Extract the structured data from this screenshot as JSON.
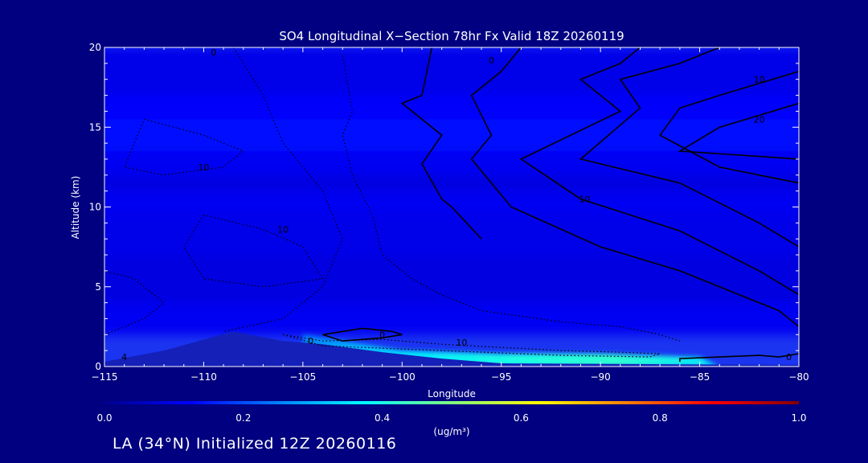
{
  "chart_data": {
    "type": "heatmap",
    "title": "SO4 Longitudinal X−Section 78hr  Fx Valid 18Z 20260119",
    "xlabel": "Longitude",
    "ylabel": "Altitude (km)",
    "xlim": [
      -115,
      -80
    ],
    "ylim": [
      0,
      20
    ],
    "x_ticks": [
      -115,
      -110,
      -105,
      -100,
      -95,
      -90,
      -85,
      -80
    ],
    "x_tick_labels": [
      "−115",
      "−110",
      "−105",
      "−100",
      "−95",
      "−90",
      "−85",
      "−80"
    ],
    "y_ticks": [
      0,
      5,
      10,
      15,
      20
    ],
    "y_tick_labels": [
      "0",
      "5",
      "10",
      "15",
      "20"
    ],
    "colorbar": {
      "label": "(ug/m³)",
      "range": [
        0,
        1
      ],
      "ticks": [
        0,
        0.2,
        0.4,
        0.6,
        0.8,
        1.0
      ],
      "tick_labels": [
        "0.0",
        "0.2",
        "0.4",
        "0.6",
        "0.8",
        "1.0"
      ],
      "colormap": [
        "#00008f",
        "#0000ff",
        "#0080ff",
        "#00ffff",
        "#80ff80",
        "#ffff00",
        "#ff8000",
        "#ff0000",
        "#800000"
      ]
    },
    "bands": [
      {
        "alt_range": [
          17,
          20
        ],
        "value": 0.1
      },
      {
        "alt_range": [
          15.5,
          17
        ],
        "value": 0.12
      },
      {
        "alt_range": [
          13.5,
          15.5
        ],
        "value": 0.14
      },
      {
        "alt_range": [
          12,
          13.5
        ],
        "value": 0.11
      },
      {
        "alt_range": [
          11,
          12
        ],
        "value": 0.09
      },
      {
        "alt_range": [
          9.5,
          11
        ],
        "value": 0.11
      },
      {
        "alt_range": [
          7,
          9.5
        ],
        "value": 0.1
      },
      {
        "alt_range": [
          4,
          7
        ],
        "value": 0.09
      },
      {
        "alt_range": [
          2,
          4
        ],
        "value": 0.11
      }
    ],
    "surface_plume": [
      {
        "lon": -105,
        "alt": 2.0,
        "value": 0.25
      },
      {
        "lon": -100,
        "alt": 1.0,
        "value": 0.35
      },
      {
        "lon": -95,
        "alt": 0.8,
        "value": 0.4
      },
      {
        "lon": -90,
        "alt": 0.8,
        "value": 0.42
      },
      {
        "lon": -85,
        "alt": 0.6,
        "value": 0.35
      }
    ],
    "terrain": [
      {
        "lon": -115,
        "alt": 0.3
      },
      {
        "lon": -112,
        "alt": 1.0
      },
      {
        "lon": -108.5,
        "alt": 2.2
      },
      {
        "lon": -106,
        "alt": 1.6
      },
      {
        "lon": -104,
        "alt": 1.4
      },
      {
        "lon": -101,
        "alt": 0.9
      },
      {
        "lon": -98,
        "alt": 0.5
      },
      {
        "lon": -95,
        "alt": 0.2
      },
      {
        "lon": -80,
        "alt": 0.1
      }
    ],
    "contour_labels": [
      {
        "text": "0",
        "lon": -109.5,
        "alt": 19.7
      },
      {
        "text": "0",
        "lon": -95.5,
        "alt": 19.2
      },
      {
        "text": "10",
        "lon": -82,
        "alt": 18.0
      },
      {
        "text": "20",
        "lon": -82,
        "alt": 15.5
      },
      {
        "text": "10",
        "lon": -110,
        "alt": 12.5
      },
      {
        "text": "10",
        "lon": -90.8,
        "alt": 10.5
      },
      {
        "text": "10",
        "lon": -106,
        "alt": 8.6
      },
      {
        "text": "0",
        "lon": -101,
        "alt": 2.0
      },
      {
        "text": "0",
        "lon": -104.6,
        "alt": 1.6
      },
      {
        "text": "10",
        "lon": -97,
        "alt": 1.5
      },
      {
        "text": "0",
        "lon": -80.5,
        "alt": 0.6
      },
      {
        "text": "4",
        "lon": -114,
        "alt": 0.6
      }
    ],
    "solid_contours": [
      [
        [
          -98.5,
          20
        ],
        [
          -99,
          17
        ],
        [
          -100,
          16.5
        ],
        [
          -98,
          14.5
        ],
        [
          -99,
          12.7
        ],
        [
          -98,
          10.5
        ],
        [
          -97.5,
          10
        ],
        [
          -96,
          8
        ]
      ],
      [
        [
          -94,
          20
        ],
        [
          -95,
          18.5
        ],
        [
          -96.5,
          17
        ],
        [
          -95.5,
          14.5
        ],
        [
          -96.5,
          13
        ],
        [
          -94.5,
          10
        ],
        [
          -90,
          7.5
        ],
        [
          -86,
          6
        ],
        [
          -83,
          4.5
        ],
        [
          -81,
          3.5
        ],
        [
          -80,
          2.5
        ]
      ],
      [
        [
          -88,
          20
        ],
        [
          -89,
          19
        ],
        [
          -91,
          18
        ],
        [
          -89,
          16
        ],
        [
          -94,
          13
        ],
        [
          -91,
          10.5
        ],
        [
          -86,
          8.5
        ],
        [
          -82,
          6
        ],
        [
          -80,
          4.5
        ]
      ],
      [
        [
          -84,
          20
        ],
        [
          -86,
          19
        ],
        [
          -89,
          18
        ],
        [
          -88,
          16.2
        ],
        [
          -91,
          13
        ],
        [
          -86,
          11.5
        ],
        [
          -82,
          9
        ],
        [
          -80,
          7.5
        ]
      ],
      [
        [
          -80,
          18.5
        ],
        [
          -84,
          17
        ],
        [
          -86,
          16.2
        ],
        [
          -87,
          14.5
        ],
        [
          -84,
          12.5
        ],
        [
          -80,
          11.5
        ]
      ],
      [
        [
          -80,
          16.5
        ],
        [
          -84,
          15
        ],
        [
          -86,
          13.5
        ],
        [
          -80,
          13
        ]
      ],
      [
        [
          -104,
          2.0
        ],
        [
          -102,
          2.4
        ],
        [
          -100.5,
          2.2
        ],
        [
          -100,
          2.0
        ],
        [
          -101,
          1.8
        ],
        [
          -103,
          1.6
        ],
        [
          -104,
          2.0
        ]
      ],
      [
        [
          -86,
          0.3
        ],
        [
          -86,
          0.5
        ],
        [
          -84,
          0.6
        ],
        [
          -82,
          0.7
        ],
        [
          -81,
          0.6
        ],
        [
          -80,
          0.8
        ]
      ]
    ],
    "dotted_contours": [
      [
        [
          -108.5,
          20
        ],
        [
          -107,
          17
        ],
        [
          -106,
          14
        ],
        [
          -104,
          11
        ],
        [
          -103,
          8
        ],
        [
          -104,
          5
        ],
        [
          -106,
          3
        ],
        [
          -109,
          2.2
        ]
      ],
      [
        [
          -103,
          19.5
        ],
        [
          -102.5,
          16
        ],
        [
          -103,
          14.5
        ],
        [
          -102.5,
          12
        ],
        [
          -101.5,
          9.5
        ],
        [
          -101,
          7
        ],
        [
          -99.5,
          5.5
        ],
        [
          -98,
          4.5
        ],
        [
          -96,
          3.5
        ],
        [
          -92,
          2.8
        ],
        [
          -89,
          2.5
        ],
        [
          -87,
          2.0
        ],
        [
          -86,
          1.6
        ]
      ],
      [
        [
          -113,
          15.5
        ],
        [
          -110,
          14.5
        ],
        [
          -108,
          13.5
        ],
        [
          -109,
          12.5
        ],
        [
          -112,
          12.0
        ],
        [
          -114,
          12.5
        ],
        [
          -113,
          15.5
        ]
      ],
      [
        [
          -110,
          9.5
        ],
        [
          -107,
          8.6
        ],
        [
          -105,
          7.5
        ],
        [
          -104,
          5.5
        ],
        [
          -107,
          5
        ],
        [
          -110,
          5.5
        ],
        [
          -111,
          7.5
        ],
        [
          -110,
          9.5
        ]
      ],
      [
        [
          -106,
          2.0
        ],
        [
          -104,
          1.6
        ],
        [
          -101,
          1.7
        ],
        [
          -98,
          1.4
        ],
        [
          -95,
          1.2
        ],
        [
          -92,
          1.0
        ],
        [
          -89,
          0.9
        ],
        [
          -87,
          0.8
        ],
        [
          -87.5,
          0.6
        ],
        [
          -92,
          0.7
        ],
        [
          -96,
          0.9
        ],
        [
          -100,
          1.1
        ],
        [
          -104,
          1.3
        ],
        [
          -106,
          2.0
        ]
      ],
      [
        [
          -115,
          2.0
        ],
        [
          -113,
          3.0
        ],
        [
          -112,
          4.0
        ],
        [
          -113.5,
          5.5
        ],
        [
          -115,
          6
        ]
      ]
    ]
  },
  "footer": {
    "text": "LA (34°N) Initialized 12Z 20260116"
  }
}
